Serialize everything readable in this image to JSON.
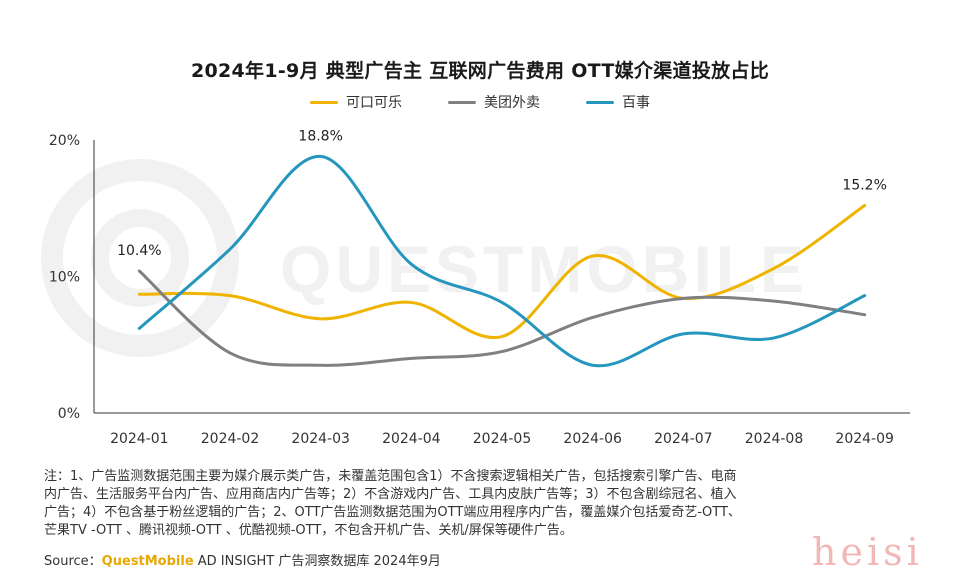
{
  "chart_data": {
    "type": "line",
    "title": "2024年1-9月 典型广告主 互联网广告费用 OTT媒介渠道投放占比",
    "categories": [
      "2024-01",
      "2024-02",
      "2024-03",
      "2024-04",
      "2024-05",
      "2024-06",
      "2024-07",
      "2024-08",
      "2024-09"
    ],
    "y_ticks": [
      "0%",
      "10%",
      "20%"
    ],
    "ylim": [
      0,
      20
    ],
    "grid": false,
    "legend_position": "top-center",
    "smooth": true,
    "series": [
      {
        "name": "可口可乐",
        "color": "#f0b400",
        "values": [
          8.7,
          8.6,
          6.9,
          8.1,
          5.6,
          11.5,
          8.4,
          10.6,
          15.2
        ]
      },
      {
        "name": "美团外卖",
        "color": "#808080",
        "values": [
          10.4,
          4.4,
          3.5,
          4.0,
          4.5,
          7.0,
          8.4,
          8.2,
          7.2
        ]
      },
      {
        "name": "百事",
        "color": "#2596be",
        "values": [
          6.2,
          12.0,
          18.8,
          10.9,
          8.1,
          3.5,
          5.8,
          5.5,
          8.6
        ]
      }
    ],
    "data_labels": [
      {
        "series": 1,
        "index": 0,
        "text": "10.4%"
      },
      {
        "series": 2,
        "index": 2,
        "text": "18.8%"
      },
      {
        "series": 0,
        "index": 8,
        "text": "15.2%"
      }
    ]
  },
  "notes": [
    "注：1、广告监测数据范围主要为媒介展示类广告，未覆盖范围包含1）不含搜索逻辑相关广告，包括搜索引擎广告、电商",
    "内广告、生活服务平台内广告、应用商店内广告等；2）不含游戏内广告、工具内皮肤广告等；3）不包含剧综冠名、植入",
    "广告；4）不包含基于粉丝逻辑的广告；2、OTT广告监测数据范围为OTT端应用程序内广告，覆盖媒介包括爱奇艺-OTT、",
    "芒果TV -OTT 、腾讯视频-OTT 、优酷视频-OTT，不包含开机广告、关机/屏保等硬件广告。"
  ],
  "source": {
    "prefix": "Source：",
    "brand": "QuestMobile",
    "rest": " AD INSIGHT 广告洞察数据库 2024年9月"
  },
  "watermark": {
    "brand": "QUESTMOBILE",
    "stamp": "heisi"
  },
  "colors": {
    "axis": "#333333",
    "tick_text": "#333333",
    "watermark": "#f1f1f1"
  }
}
